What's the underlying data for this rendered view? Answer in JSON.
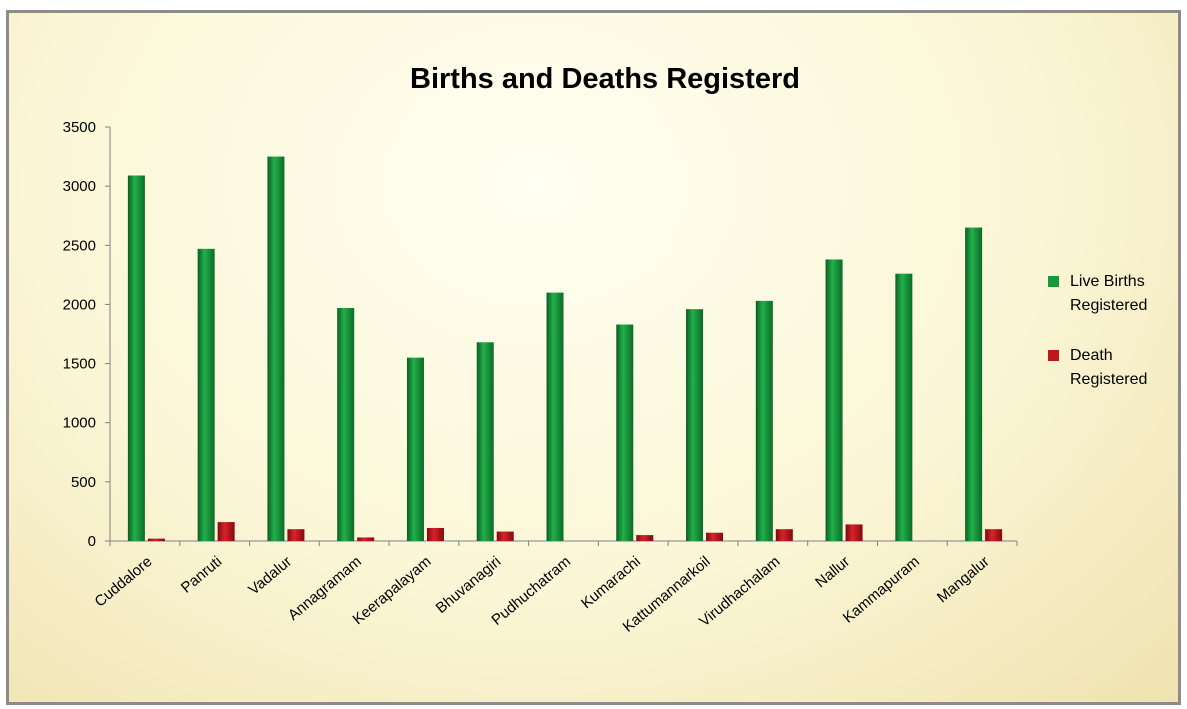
{
  "chart_data": {
    "type": "bar",
    "title": "Births and Deaths Registerd",
    "categories": [
      "Cuddalore",
      "Panruti",
      "Vadalur",
      "Annagramam",
      "Keerapalayam",
      "Bhuvanagiri",
      "Pudhuchatram",
      "Kumarachi",
      "Kattumannarkoil",
      "Virudhachalam",
      "Nallur",
      "Kammapuram",
      "Mangalur"
    ],
    "series": [
      {
        "name": "Live Births Registered",
        "color": "#179a3a",
        "values": [
          3090,
          2470,
          3250,
          1970,
          1550,
          1680,
          2100,
          1830,
          1960,
          2030,
          2380,
          2260,
          2650
        ]
      },
      {
        "name": "Death Registered",
        "color": "#c0161c",
        "values": [
          20,
          160,
          100,
          30,
          110,
          80,
          0,
          50,
          70,
          100,
          140,
          0,
          100
        ]
      }
    ],
    "ylim": [
      0,
      3500
    ],
    "yticks": [
      0,
      500,
      1000,
      1500,
      2000,
      2500,
      3000,
      3500
    ],
    "grid": false,
    "legend": "right"
  }
}
